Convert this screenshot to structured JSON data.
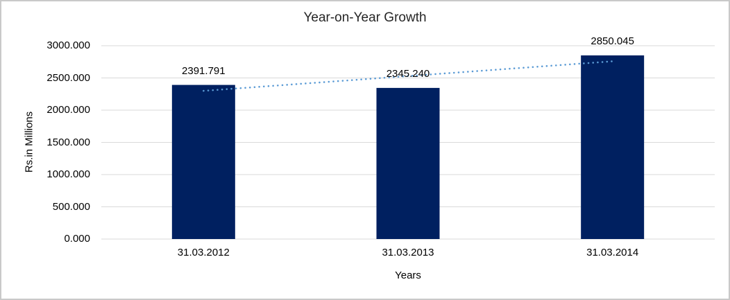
{
  "chart_data": {
    "type": "bar",
    "title": "Year-on-Year Growth",
    "xlabel": "Years",
    "ylabel": "Rs.in Millions",
    "categories": [
      "31.03.2012",
      "31.03.2013",
      "31.03.2014"
    ],
    "values": [
      2391.791,
      2345.24,
      2850.045
    ],
    "value_labels": [
      "2391.791",
      "2345.240",
      "2850.045"
    ],
    "ylim": [
      0,
      3000
    ],
    "ytick_step": 500,
    "ytick_labels": [
      "0.000",
      "500.000",
      "1000.000",
      "1500.000",
      "2000.000",
      "2500.000",
      "3000.000"
    ],
    "grid": true,
    "legend_position": "none",
    "trendline": {
      "type": "linear",
      "style": "dotted"
    },
    "colors": {
      "bar": "#002060",
      "trendline": "#5b9bd5",
      "gridline": "#d9d9d9",
      "text": "#000000",
      "frame_border": "#c9c9c9",
      "background": "#ffffff"
    }
  }
}
